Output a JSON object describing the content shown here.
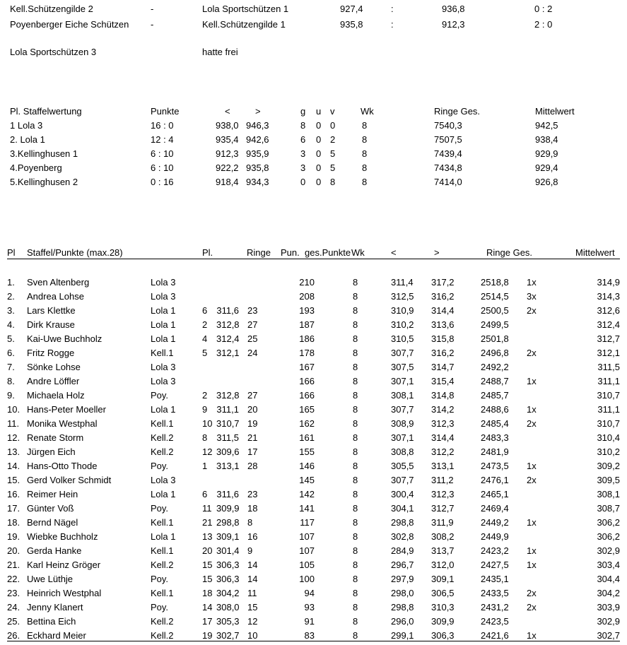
{
  "match_results": {
    "rows": [
      [
        "Kell.Schützengilde 2",
        "-",
        "Lola Sportschützen 1",
        "927,4",
        ":",
        "936,8",
        "0 : 2"
      ],
      [
        "Poyenberger Eiche Schützen",
        "-",
        "Kell.Schützengilde 1",
        "935,8",
        ":",
        "912,3",
        "2 : 0"
      ]
    ],
    "bye_team": "Lola Sportschützen 3",
    "bye_note": "hatte frei"
  },
  "team_table": {
    "headers": [
      "Pl. Staffelwertung",
      "Punkte",
      "<",
      ">",
      "g",
      "u",
      "v",
      "Wk",
      "Ringe Ges.",
      "Mittelwert"
    ],
    "rows": [
      [
        "1 Lola 3",
        "16 : 0",
        "938,0",
        "946,3",
        "8",
        "0",
        "0",
        "8",
        "7540,3",
        "942,5"
      ],
      [
        "2. Lola 1",
        "12 : 4",
        "935,4",
        "942,6",
        "6",
        "0",
        "2",
        "8",
        "7507,5",
        "938,4"
      ],
      [
        "3.Kellinghusen 1",
        "6 : 10",
        "912,3",
        "935,9",
        "3",
        "0",
        "5",
        "8",
        "7439,4",
        "929,9"
      ],
      [
        "4.Poyenberg",
        "6 : 10",
        "922,2",
        "935,8",
        "3",
        "0",
        "5",
        "8",
        "7434,8",
        "929,4"
      ],
      [
        "5.Kellinghusen 2",
        "0 : 16",
        "918,4",
        "934,3",
        "0",
        "0",
        "8",
        "8",
        "7414,0",
        "926,8"
      ]
    ]
  },
  "individual_table": {
    "headers": [
      "Pl",
      "Staffel/Punkte (max.28)",
      "",
      "Pl.",
      "Ringe",
      "Pun.",
      "ges.Punkte",
      "Wk",
      "<",
      ">",
      "Ringe Ges.",
      "",
      "Mittelwert"
    ],
    "rows": [
      [
        "1.",
        "Sven Altenberg",
        "Lola 3",
        "",
        "",
        "",
        "210",
        "8",
        "311,4",
        "317,2",
        "2518,8",
        "1x",
        "314,9"
      ],
      [
        "2.",
        "Andrea Lohse",
        "Lola 3",
        "",
        "",
        "",
        "208",
        "8",
        "312,5",
        "316,2",
        "2514,5",
        "3x",
        "314,3"
      ],
      [
        "3.",
        "Lars Klettke",
        "Lola 1",
        "6",
        "311,6",
        "23",
        "193",
        "8",
        "310,9",
        "314,4",
        "2500,5",
        "2x",
        "312,6"
      ],
      [
        "4.",
        "Dirk Krause",
        "Lola 1",
        "2",
        "312,8",
        "27",
        "187",
        "8",
        "310,2",
        "313,6",
        "2499,5",
        "",
        "312,4"
      ],
      [
        "5.",
        "Kai-Uwe Buchholz",
        "Lola 1",
        "4",
        "312,4",
        "25",
        "186",
        "8",
        "310,5",
        "315,8",
        "2501,8",
        "",
        "312,7"
      ],
      [
        "6.",
        "Fritz Rogge",
        "Kell.1",
        "5",
        "312,1",
        "24",
        "178",
        "8",
        "307,7",
        "316,2",
        "2496,8",
        "2x",
        "312,1"
      ],
      [
        "7.",
        "Sönke Lohse",
        "Lola 3",
        "",
        "",
        "",
        "167",
        "8",
        "307,5",
        "314,7",
        "2492,2",
        "",
        "311,5"
      ],
      [
        "8.",
        "Andre Löffler",
        "Lola 3",
        "",
        "",
        "",
        "166",
        "8",
        "307,1",
        "315,4",
        "2488,7",
        "1x",
        "311,1"
      ],
      [
        "9.",
        "Michaela Holz",
        "Poy.",
        "2",
        "312,8",
        "27",
        "166",
        "8",
        "308,1",
        "314,8",
        "2485,7",
        "",
        "310,7"
      ],
      [
        "10.",
        "Hans-Peter Moeller",
        "Lola 1",
        "9",
        "311,1",
        "20",
        "165",
        "8",
        "307,7",
        "314,2",
        "2488,6",
        "1x",
        "311,1"
      ],
      [
        "11.",
        "Monika Westphal",
        "Kell.1",
        "10",
        "310,7",
        "19",
        "162",
        "8",
        "308,9",
        "312,3",
        "2485,4",
        "2x",
        "310,7"
      ],
      [
        "12.",
        "Renate Storm",
        "Kell.2",
        "8",
        "311,5",
        "21",
        "161",
        "8",
        "307,1",
        "314,4",
        "2483,3",
        "",
        "310,4"
      ],
      [
        "13.",
        "Jürgen Eich",
        "Kell.2",
        "12",
        "309,6",
        "17",
        "155",
        "8",
        "308,8",
        "312,2",
        "2481,9",
        "",
        "310,2"
      ],
      [
        "14.",
        "Hans-Otto Thode",
        "Poy.",
        "1",
        "313,1",
        "28",
        "146",
        "8",
        "305,5",
        "313,1",
        "2473,5",
        "1x",
        "309,2"
      ],
      [
        "15.",
        "Gerd Volker Schmidt",
        "Lola 3",
        "",
        "",
        "",
        "145",
        "8",
        "307,7",
        "311,2",
        "2476,1",
        "2x",
        "309,5"
      ],
      [
        "16.",
        "Reimer Hein",
        "Lola 1",
        "6",
        "311,6",
        "23",
        "142",
        "8",
        "300,4",
        "312,3",
        "2465,1",
        "",
        "308,1"
      ],
      [
        "17.",
        "Günter Voß",
        "Poy.",
        "11",
        "309,9",
        "18",
        "141",
        "8",
        "304,1",
        "312,7",
        "2469,4",
        "",
        "308,7"
      ],
      [
        "18.",
        "Bernd Nägel",
        "Kell.1",
        "21",
        "298,8",
        "8",
        "117",
        "8",
        "298,8",
        "311,9",
        "2449,2",
        "1x",
        "306,2"
      ],
      [
        "19.",
        "Wiebke Buchholz",
        "Lola 1",
        "13",
        "309,1",
        "16",
        "107",
        "8",
        "302,8",
        "308,2",
        "2449,9",
        "",
        "306,2"
      ],
      [
        "20.",
        "Gerda Hanke",
        "Kell.1",
        "20",
        "301,4",
        "9",
        "107",
        "8",
        "284,9",
        "313,7",
        "2423,2",
        "1x",
        "302,9"
      ],
      [
        "21.",
        "Karl Heinz Gröger",
        "Kell.2",
        "15",
        "306,3",
        "14",
        "105",
        "8",
        "296,7",
        "312,0",
        "2427,5",
        "1x",
        "303,4"
      ],
      [
        "22.",
        "Uwe Lüthje",
        "Poy.",
        "15",
        "306,3",
        "14",
        "100",
        "8",
        "297,9",
        "309,1",
        "2435,1",
        "",
        "304,4"
      ],
      [
        "23.",
        "Heinrich Westphal",
        "Kell.1",
        "18",
        "304,2",
        "11",
        "94",
        "8",
        "298,0",
        "306,5",
        "2433,5",
        "2x",
        "304,2"
      ],
      [
        "24.",
        "Jenny Klanert",
        "Poy.",
        "14",
        "308,0",
        "15",
        "93",
        "8",
        "298,8",
        "310,3",
        "2431,2",
        "2x",
        "303,9"
      ],
      [
        "25.",
        "Bettina Eich",
        "Kell.2",
        "17",
        "305,3",
        "12",
        "91",
        "8",
        "296,0",
        "309,9",
        "2423,5",
        "",
        "302,9"
      ],
      [
        "26.",
        "Eckhard Meier",
        "Kell.2",
        "19",
        "302,7",
        "10",
        "83",
        "8",
        "299,1",
        "306,3",
        "2421,6",
        "1x",
        "302,7"
      ]
    ]
  }
}
